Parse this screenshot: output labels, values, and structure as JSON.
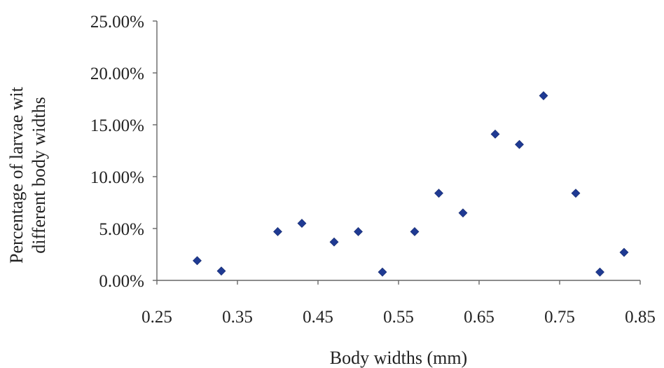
{
  "chart_data": {
    "type": "scatter",
    "title": "",
    "xlabel": "Body widths (mm)",
    "ylabel_lines": [
      "Percentage of larvae wit",
      "different body widths"
    ],
    "xlim": [
      0.25,
      0.85
    ],
    "ylim": [
      0,
      0.25
    ],
    "x_ticks": [
      "0.25",
      "0.35",
      "0.45",
      "0.55",
      "0.65",
      "0.75",
      "0.85"
    ],
    "y_ticks": [
      "0.00%",
      "5.00%",
      "10.00%",
      "15.00%",
      "20.00%",
      "25.00%"
    ],
    "grid": false,
    "legend": "none",
    "marker": "diamond",
    "marker_color": "#1F3A93",
    "points": [
      {
        "x": 0.3,
        "y": 0.019
      },
      {
        "x": 0.33,
        "y": 0.009
      },
      {
        "x": 0.4,
        "y": 0.047
      },
      {
        "x": 0.43,
        "y": 0.055
      },
      {
        "x": 0.47,
        "y": 0.037
      },
      {
        "x": 0.5,
        "y": 0.047
      },
      {
        "x": 0.53,
        "y": 0.008
      },
      {
        "x": 0.57,
        "y": 0.047
      },
      {
        "x": 0.6,
        "y": 0.084
      },
      {
        "x": 0.63,
        "y": 0.065
      },
      {
        "x": 0.67,
        "y": 0.141
      },
      {
        "x": 0.7,
        "y": 0.131
      },
      {
        "x": 0.73,
        "y": 0.178
      },
      {
        "x": 0.77,
        "y": 0.084
      },
      {
        "x": 0.8,
        "y": 0.008
      },
      {
        "x": 0.83,
        "y": 0.027
      }
    ]
  }
}
